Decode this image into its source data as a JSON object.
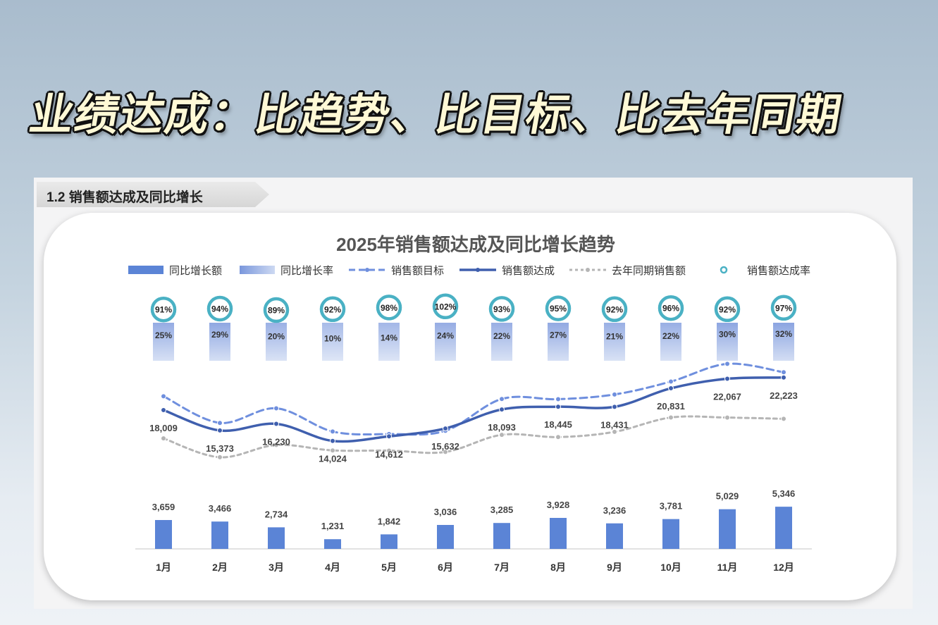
{
  "headline": "业绩达成：比趋势、比目标、比去年同期",
  "section_tag": "1.2  销售额达成及同比增长",
  "colors": {
    "bar": "#5b84d6",
    "rate_bar_top": "#7a97dc",
    "rate_bar_bottom": "#cdd9f2",
    "actual_line": "#3f5fae",
    "target_line": "#6f8fde",
    "last_year_line": "#b5b5b5",
    "circle_ring": "#4ab1c4"
  },
  "chart_data": {
    "type": "combo",
    "title": "2025年销售额达成及同比增长趋势",
    "categories": [
      "1月",
      "2月",
      "3月",
      "4月",
      "5月",
      "6月",
      "7月",
      "8月",
      "9月",
      "10月",
      "11月",
      "12月"
    ],
    "legend": [
      "同比增长额",
      "同比增长率",
      "销售额目标",
      "销售额达成",
      "去年同期销售额",
      "销售额达成率"
    ],
    "series": [
      {
        "name": "同比增长额",
        "kind": "bar",
        "values": [
          3659,
          3466,
          2734,
          1231,
          1842,
          3036,
          3285,
          3928,
          3236,
          3781,
          5029,
          5346
        ],
        "labels": [
          "3,659",
          "3,466",
          "2,734",
          "1,231",
          "1,842",
          "3,036",
          "3,285",
          "3,928",
          "3,236",
          "3,781",
          "5,029",
          "5,346"
        ]
      },
      {
        "name": "同比增长率",
        "kind": "rate-bar",
        "values": [
          25,
          29,
          20,
          10,
          14,
          24,
          22,
          27,
          21,
          22,
          30,
          32
        ],
        "labels": [
          "25%",
          "29%",
          "20%",
          "10%",
          "14%",
          "24%",
          "22%",
          "27%",
          "21%",
          "22%",
          "30%",
          "32%"
        ]
      },
      {
        "name": "销售额目标",
        "kind": "dashed-line",
        "values": [
          19800,
          16350,
          18240,
          15240,
          14910,
          15330,
          19450,
          19420,
          20030,
          21700,
          23990,
          22910
        ]
      },
      {
        "name": "销售额达成",
        "kind": "line",
        "values": [
          18009,
          15373,
          16230,
          14024,
          14612,
          15632,
          18093,
          18445,
          18431,
          20831,
          22067,
          22223
        ],
        "labels": [
          "18,009",
          "15,373",
          "16,230",
          "14,024",
          "14,612",
          "15,632",
          "18,093",
          "18,445",
          "18,431",
          "20,831",
          "22,067",
          "22,223"
        ]
      },
      {
        "name": "去年同期销售额",
        "kind": "dotted-line",
        "values": [
          14350,
          11907,
          13496,
          12793,
          12770,
          12596,
          14808,
          14517,
          15195,
          17050,
          17038,
          16877
        ]
      },
      {
        "name": "销售额达成率",
        "kind": "circle",
        "values": [
          91,
          94,
          89,
          92,
          98,
          102,
          93,
          95,
          92,
          96,
          92,
          97
        ],
        "labels": [
          "91%",
          "94%",
          "89%",
          "92%",
          "98%",
          "102%",
          "93%",
          "95%",
          "92%",
          "96%",
          "92%",
          "97%"
        ]
      }
    ]
  }
}
